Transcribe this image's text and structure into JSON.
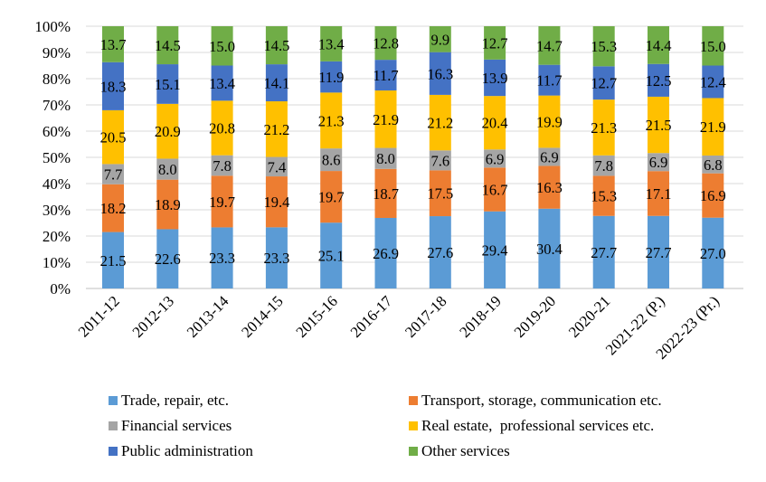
{
  "chart_data": {
    "type": "bar",
    "stacked": true,
    "percent_stacked": true,
    "title": "",
    "xlabel": "",
    "ylabel": "",
    "ylim": [
      0,
      100
    ],
    "yticks": [
      "0%",
      "10%",
      "20%",
      "30%",
      "40%",
      "50%",
      "60%",
      "70%",
      "80%",
      "90%",
      "100%"
    ],
    "grid": true,
    "legend_position": "bottom",
    "categories": [
      "2011-12",
      "2012-13",
      "2013-14",
      "2014-15",
      "2015-16",
      "2016-17",
      "2017-18",
      "2018-19",
      "2019-20",
      "2020-21",
      "2021-22 (P.)",
      "2022-23 (Pr.)"
    ],
    "series": [
      {
        "name": "Trade, repair, etc.",
        "color": "#5B9BD5",
        "values": [
          21.5,
          22.6,
          23.3,
          23.3,
          25.1,
          26.9,
          27.6,
          29.4,
          30.4,
          27.7,
          27.7,
          27.0
        ]
      },
      {
        "name": "Transport, storage, communication etc.",
        "color": "#ED7D31",
        "values": [
          18.2,
          18.9,
          19.7,
          19.4,
          19.7,
          18.7,
          17.5,
          16.7,
          16.3,
          15.3,
          17.1,
          16.9
        ]
      },
      {
        "name": "Financial services",
        "color": "#A5A5A5",
        "values": [
          7.7,
          8.0,
          7.8,
          7.4,
          8.6,
          8.0,
          7.6,
          6.9,
          6.9,
          7.8,
          6.9,
          6.8
        ]
      },
      {
        "name": "Real estate,  professional services etc.",
        "color": "#FFC000",
        "values": [
          20.5,
          20.9,
          20.8,
          21.2,
          21.3,
          21.9,
          21.2,
          20.4,
          19.9,
          21.3,
          21.5,
          21.9
        ]
      },
      {
        "name": "Public administration",
        "color": "#4472C4",
        "values": [
          18.3,
          15.1,
          13.4,
          14.1,
          11.9,
          11.7,
          16.3,
          13.9,
          11.7,
          12.7,
          12.5,
          12.4
        ]
      },
      {
        "name": "Other services",
        "color": "#70AD47",
        "values": [
          13.7,
          14.5,
          15.0,
          14.5,
          13.4,
          12.8,
          9.9,
          12.7,
          14.7,
          15.3,
          14.4,
          15.0
        ]
      }
    ]
  }
}
